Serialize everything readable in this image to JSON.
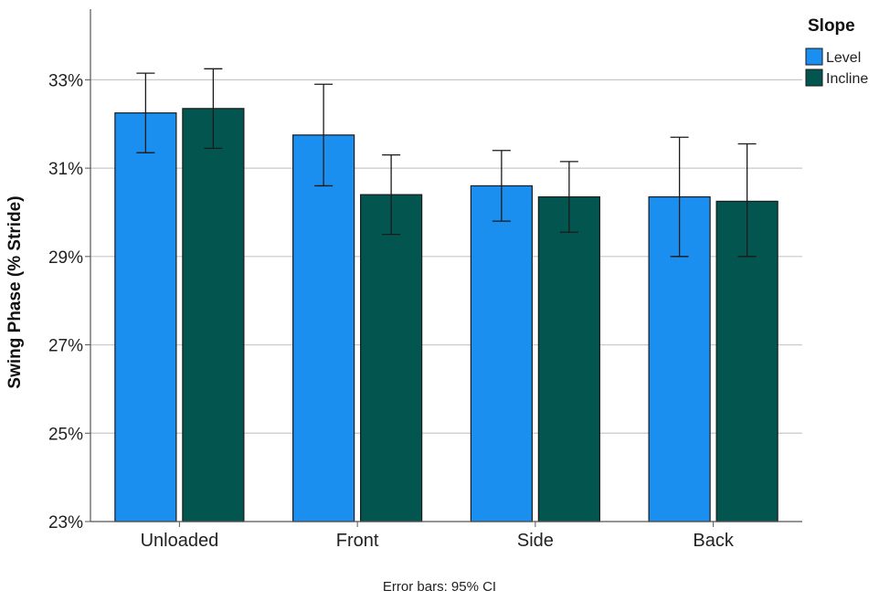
{
  "chart_data": {
    "type": "bar",
    "ylabel": "Swing Phase (% Stride)",
    "xlabel": "",
    "categories": [
      "Unloaded",
      "Front",
      "Side",
      "Back"
    ],
    "y_ticks": [
      "23%",
      "25%",
      "27%",
      "29%",
      "31%",
      "33%"
    ],
    "y_tick_values": [
      23,
      25,
      27,
      29,
      31,
      33
    ],
    "ylim": [
      23,
      34.6
    ],
    "grid": "horizontal",
    "legend": {
      "title": "Slope",
      "placement": "top-right"
    },
    "series": [
      {
        "name": "Level",
        "color": "#1a8ff0",
        "values": [
          32.25,
          31.75,
          30.6,
          30.35
        ],
        "ci_low": [
          31.35,
          30.6,
          29.8,
          29.0
        ],
        "ci_high": [
          33.15,
          32.9,
          31.4,
          31.7
        ]
      },
      {
        "name": "Incline",
        "color": "#03564f",
        "values": [
          32.35,
          30.4,
          30.35,
          30.25
        ],
        "ci_low": [
          31.45,
          29.5,
          29.55,
          29.0
        ],
        "ci_high": [
          33.25,
          31.3,
          31.15,
          31.55
        ]
      }
    ],
    "footnote": "Error bars: 95% CI"
  }
}
